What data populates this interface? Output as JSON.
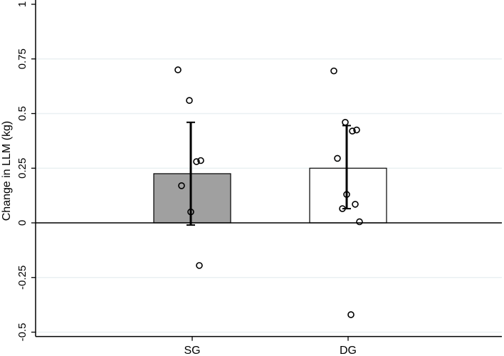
{
  "chart_data": {
    "type": "bar",
    "ylabel": "Change in LLM (kg)",
    "ylim": [
      -0.52,
      1.0
    ],
    "yticks": [
      {
        "value": 1,
        "label": "1"
      },
      {
        "value": 0.75,
        "label": "0.75"
      },
      {
        "value": 0.5,
        "label": "0.5"
      },
      {
        "value": 0.25,
        "label": "0.25"
      },
      {
        "value": 0,
        "label": "0"
      },
      {
        "value": -0.25,
        "label": "-0.25"
      },
      {
        "value": -0.5,
        "label": "-0.5"
      }
    ],
    "grid": true,
    "categories": [
      "SG",
      "DG"
    ],
    "bars": [
      {
        "category": "SG",
        "mean": 0.225,
        "error_low": -0.01,
        "error_high": 0.46,
        "fill": "#a0a0a0",
        "points": [
          0.7,
          0.56,
          0.285,
          0.28,
          0.17,
          0.05,
          -0.195
        ]
      },
      {
        "category": "DG",
        "mean": 0.25,
        "error_low": 0.065,
        "error_high": 0.445,
        "fill": "#ffffff",
        "points": [
          0.695,
          0.46,
          0.425,
          0.42,
          0.295,
          0.13,
          0.085,
          0.065,
          0.005,
          -0.42
        ]
      }
    ]
  }
}
